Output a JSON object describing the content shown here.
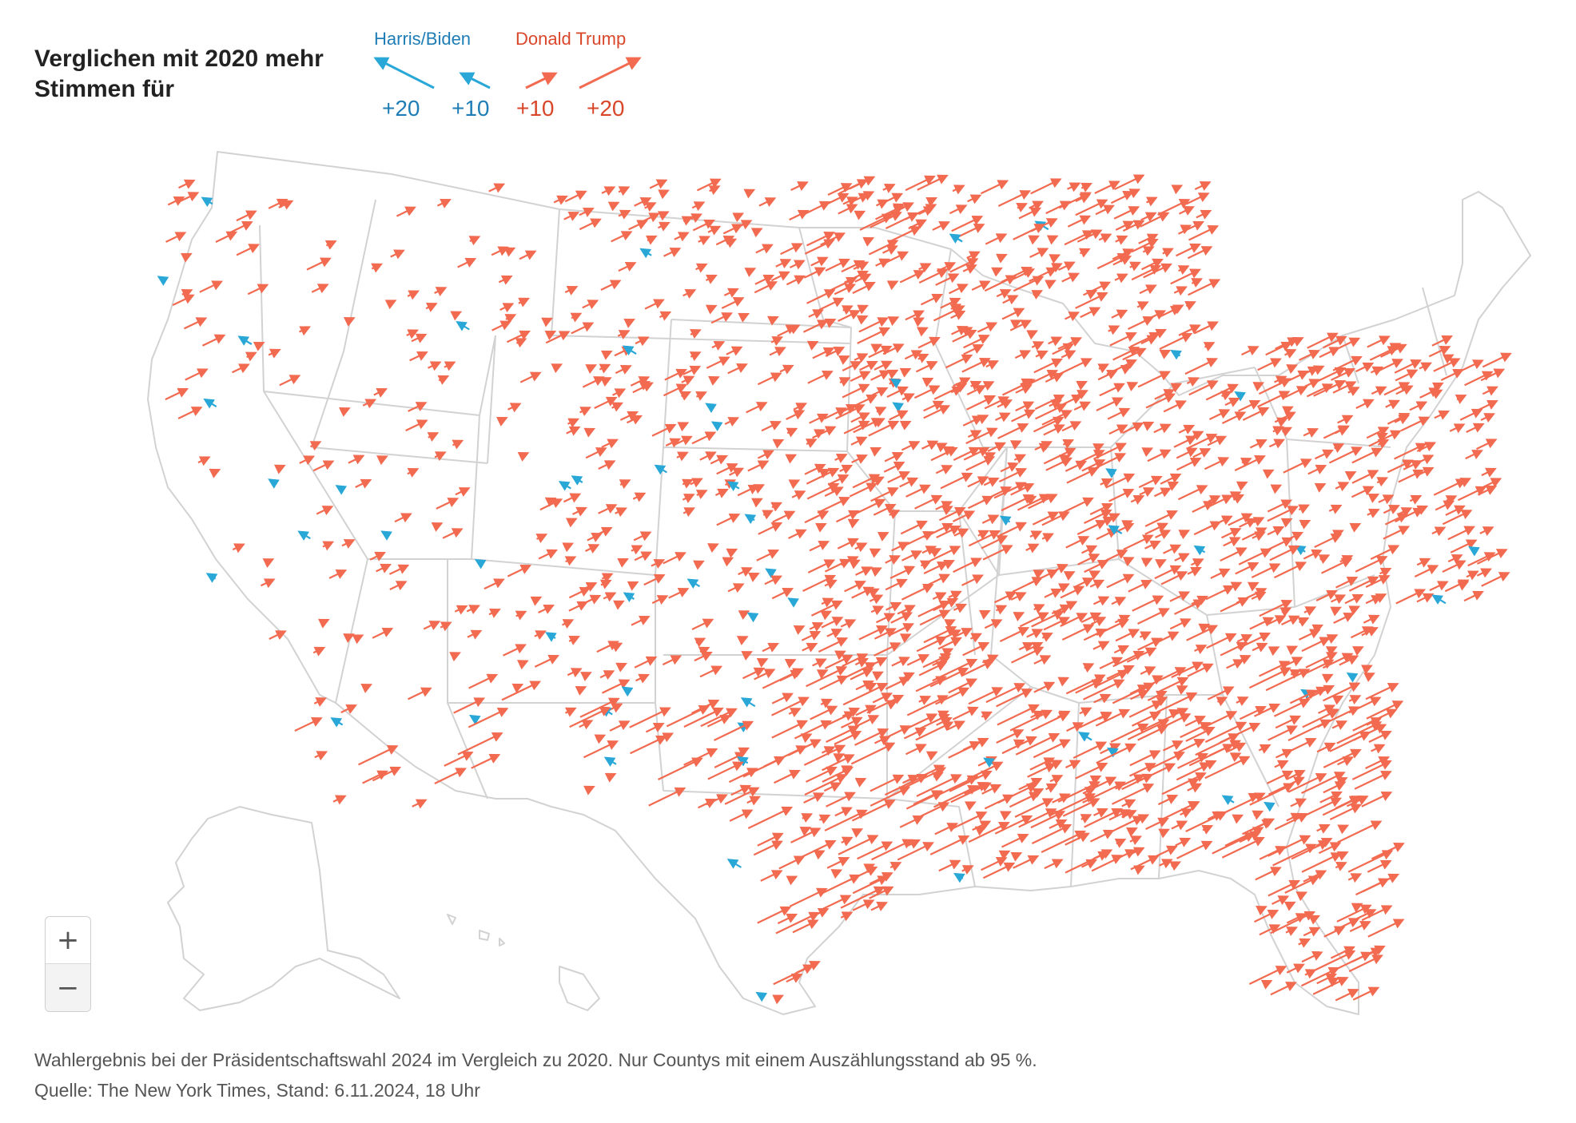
{
  "title": {
    "line1": "Verglichen mit 2020 mehr",
    "line2": "Stimmen für"
  },
  "legend": {
    "harris_label": "Harris/Biden",
    "trump_label": "Donald Trump",
    "harris_values": [
      "+20",
      "+10"
    ],
    "trump_values": [
      "+10",
      "+20"
    ],
    "colors": {
      "harris": "#29a8d8",
      "trump": "#f26a50"
    }
  },
  "zoom": {
    "in_label": "+",
    "out_label": "−"
  },
  "footer": {
    "line1": "Wahlergebnis bei der Präsidentschaftswahl 2024 im Vergleich zu 2020. Nur Countys mit einem Auszählungsstand ab 95 %.",
    "line2": "Quelle: The New York Times, Stand: 6.11.2024, 18 Uhr"
  }
}
